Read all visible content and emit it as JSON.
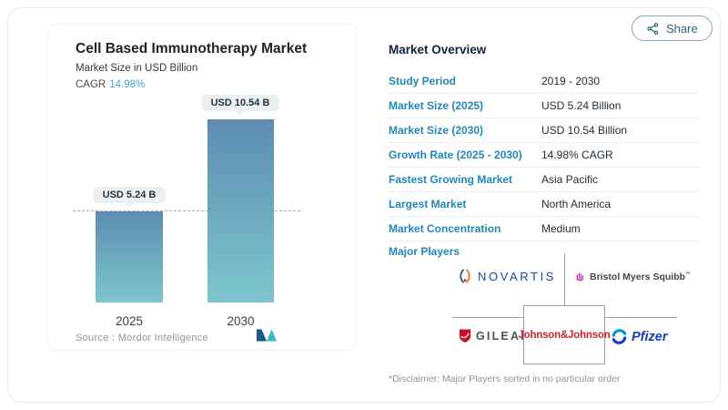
{
  "share": {
    "label": "Share"
  },
  "chart_panel": {
    "title": "Cell Based Immunotherapy Market",
    "subtitle": "Market Size in USD Billion",
    "cagr_label": "CAGR",
    "cagr_value": "14.98%",
    "source": "Source :  Mordor Intelligence"
  },
  "chart_data": {
    "type": "bar",
    "title": "Cell Based Immunotherapy Market",
    "ylabel": "Market Size in USD Billion",
    "categories": [
      "2025",
      "2030"
    ],
    "values": [
      5.24,
      10.54
    ],
    "value_labels": [
      "USD 5.24 B",
      "USD 10.54 B"
    ],
    "unit": "USD Billion",
    "ylim": [
      0,
      10.54
    ],
    "reference_line_value": 5.24,
    "bar_gradient_top": "#5d8cb1",
    "bar_gradient_bottom": "#7ec6cd",
    "grid": false,
    "legend": false
  },
  "overview": {
    "heading": "Market Overview",
    "rows": [
      {
        "label": "Study Period",
        "value": "2019 - 2030"
      },
      {
        "label": "Market Size (2025)",
        "value": "USD 5.24 Billion"
      },
      {
        "label": "Market Size (2030)",
        "value": "USD 10.54 Billion"
      },
      {
        "label": "Growth Rate (2025 - 2030)",
        "value": "14.98% CAGR"
      },
      {
        "label": "Fastest Growing Market",
        "value": "Asia Pacific"
      },
      {
        "label": "Largest Market",
        "value": "North America"
      },
      {
        "label": "Market Concentration",
        "value": "Medium"
      }
    ],
    "major_players_label": "Major Players",
    "players": [
      {
        "name": "Novartis",
        "wordmark": "NOVARTIS"
      },
      {
        "name": "Bristol Myers Squibb",
        "wordmark": "Bristol Myers Squibb",
        "tm": "™"
      },
      {
        "name": "Gilead",
        "wordmark": "GILEAD"
      },
      {
        "name": "Johnson & Johnson",
        "wordmark": "Johnson&Johnson"
      },
      {
        "name": "Pfizer",
        "wordmark": "Pfizer"
      }
    ],
    "disclaimer": "*Disclaimer: Major Players sorted in no particular order"
  },
  "colors": {
    "accent_blue": "#2287b7",
    "cagr_blue": "#45a5c9",
    "heading_navy": "#13263c",
    "share_teal": "#2e6779",
    "jj_red": "#ce2430",
    "novartis_blue": "#15489e",
    "pfizer_blue": "#1a3db8",
    "gilead_red": "#c8102e",
    "bms_magenta": "#bf2cb5"
  }
}
